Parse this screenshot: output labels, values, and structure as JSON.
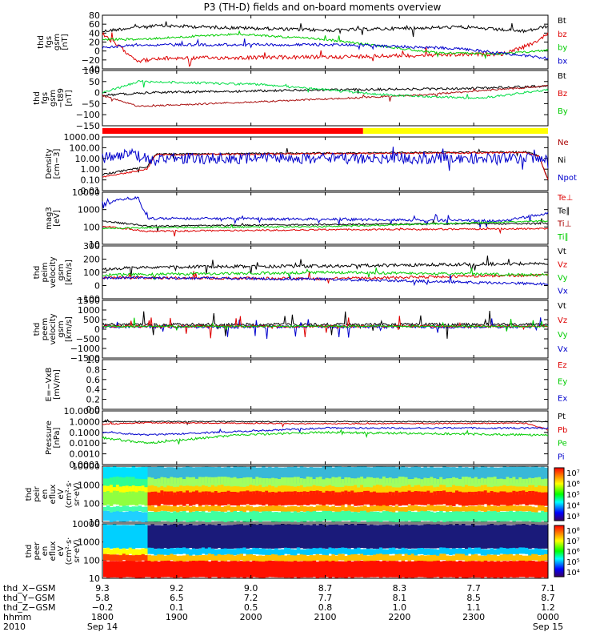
{
  "title": "P3 (TH-D) fields and on-board moments overview",
  "panels": [
    {
      "id": "fgs",
      "ylabel": [
        "thd",
        "fgs",
        "gsm",
        "[nT]"
      ],
      "ticks": [
        "80",
        "60",
        "40",
        "20",
        "0",
        "−20",
        "−40"
      ],
      "legend": [
        {
          "text": "Bt",
          "color": "#000000"
        },
        {
          "text": "bz",
          "color": "#dd0000"
        },
        {
          "text": "by",
          "color": "#00cc00"
        },
        {
          "text": "bx",
          "color": "#0000cc"
        }
      ]
    },
    {
      "id": "fgs_t89",
      "ylabel": [
        "thd",
        "fgs",
        "gsm",
        "−t89",
        "[nT]"
      ],
      "ticks": [
        "100",
        "50",
        "0",
        "−50",
        "−100",
        "−150"
      ],
      "legend": [
        {
          "text": "Bt",
          "color": "#000000"
        },
        {
          "text": "Bz",
          "color": "#dd0000"
        },
        {
          "text": "By",
          "color": "#00cc00"
        }
      ]
    },
    {
      "id": "density",
      "ylabel": [
        "Density",
        "[cm−3]"
      ],
      "ticks": [
        "1000.00",
        "100.00",
        "10.00",
        "1.00",
        "0.10",
        "0.01"
      ],
      "legend": [
        {
          "text": "Ne",
          "color": "#aa0000"
        },
        {
          "text": "Ni",
          "color": "#000000"
        },
        {
          "text": "Npot",
          "color": "#0000cc"
        }
      ]
    },
    {
      "id": "temp",
      "ylabel": [
        "mag3",
        "[eV]"
      ],
      "ticks": [
        "10000",
        "1000",
        "100",
        "10"
      ],
      "legend": [
        {
          "text": "Te⊥",
          "color": "#dd0000"
        },
        {
          "text": "Te∥",
          "color": "#000000"
        },
        {
          "text": "Ti⊥",
          "color": "#aa0000"
        },
        {
          "text": "Ti∥",
          "color": "#00cc00"
        }
      ]
    },
    {
      "id": "peim",
      "ylabel": [
        "thd",
        "peim",
        "velocity",
        "gsm",
        "[km/s]"
      ],
      "ticks": [
        "300",
        "200",
        "100",
        "0",
        "−100"
      ],
      "legend": [
        {
          "text": "Vt",
          "color": "#000000"
        },
        {
          "text": "Vz",
          "color": "#dd0000"
        },
        {
          "text": "Vy",
          "color": "#00cc00"
        },
        {
          "text": "Vx",
          "color": "#0000cc"
        }
      ]
    },
    {
      "id": "peem",
      "ylabel": [
        "thd",
        "peem",
        "velocity",
        "gsm",
        "[km/s]"
      ],
      "ticks": [
        "1500",
        "1000",
        "500",
        "0",
        "−500",
        "−1000",
        "−1500"
      ],
      "legend": [
        {
          "text": "Vt",
          "color": "#000000"
        },
        {
          "text": "Vz",
          "color": "#dd0000"
        },
        {
          "text": "Vy",
          "color": "#00cc00"
        },
        {
          "text": "Vx",
          "color": "#0000cc"
        }
      ]
    },
    {
      "id": "efield",
      "ylabel": [
        "E=−VxB",
        "[mV/m]"
      ],
      "ticks": [
        "1.0",
        "0.8",
        "0.6",
        "0.4",
        "0.2",
        "0.0"
      ],
      "legend": [
        {
          "text": "Ez",
          "color": "#dd0000"
        },
        {
          "text": "Ey",
          "color": "#00cc00"
        },
        {
          "text": "Ex",
          "color": "#0000cc"
        }
      ]
    },
    {
      "id": "pressure",
      "ylabel": [
        "Pressure",
        "[nPa]"
      ],
      "ticks": [
        "10.0000",
        "1.0000",
        "0.1000",
        "0.0100",
        "0.0010",
        "0.0001"
      ],
      "legend": [
        {
          "text": "Pt",
          "color": "#000000"
        },
        {
          "text": "Pb",
          "color": "#dd0000"
        },
        {
          "text": "Pe",
          "color": "#00cc00"
        },
        {
          "text": "Pi",
          "color": "#0000cc"
        }
      ]
    },
    {
      "id": "peir",
      "ylabel": [
        "thd",
        "peir",
        "en",
        "eflux",
        "eV",
        "(cm²·s·",
        "sr·eV)"
      ],
      "ticks": [
        "10000",
        "1000",
        "100",
        "10"
      ],
      "colorbar": [
        "10⁷",
        "10⁶",
        "10⁵",
        "10⁴",
        "10³"
      ]
    },
    {
      "id": "peer",
      "ylabel": [
        "thd",
        "peer",
        "en",
        "eflux",
        "eV",
        "(cm²·s·",
        "sr·eV)"
      ],
      "ticks": [
        "10000",
        "1000",
        "100",
        "10"
      ],
      "colorbar": [
        "10⁸",
        "10⁷",
        "10⁶",
        "10⁵",
        "10⁴"
      ]
    }
  ],
  "xaxis": {
    "row_labels": [
      "thd_X−GSM",
      "thd_Y−GSM",
      "thd_Z−GSM",
      "hhmm",
      "2010"
    ],
    "columns": [
      [
        "9.3",
        "5.8",
        "−0.2",
        "1800",
        "Sep 14"
      ],
      [
        "9.2",
        "6.5",
        "0.1",
        "1900",
        ""
      ],
      [
        "9.0",
        "7.2",
        "0.5",
        "2000",
        ""
      ],
      [
        "8.7",
        "7.7",
        "0.8",
        "2100",
        ""
      ],
      [
        "8.3",
        "8.1",
        "1.0",
        "2200",
        ""
      ],
      [
        "7.7",
        "8.5",
        "1.1",
        "2300",
        ""
      ],
      [
        "7.1",
        "8.7",
        "1.2",
        "0000",
        "Sep 15"
      ]
    ]
  },
  "mode_bar": {
    "colors": [
      "#ff0000",
      "#ffff00"
    ],
    "switch_time": "21:49"
  },
  "chart_data": {
    "type": "line",
    "title": "P3 (TH-D) fields and on-board moments overview",
    "x": [
      "1800",
      "1900",
      "2000",
      "2100",
      "2200",
      "2300",
      "0000"
    ],
    "xlim": [
      "2010-09-14 18:00",
      "2010-09-15 00:00"
    ],
    "series": [
      {
        "name": "Bt",
        "panel": "fgs",
        "values": [
          45,
          50,
          40,
          38,
          35,
          30,
          50
        ]
      },
      {
        "name": "bz",
        "panel": "fgs",
        "values": [
          35,
          -30,
          -22,
          -25,
          -25,
          -22,
          40
        ]
      },
      {
        "name": "by",
        "panel": "fgs",
        "values": [
          25,
          30,
          22,
          15,
          0,
          -25,
          -20
        ]
      },
      {
        "name": "bx",
        "panel": "fgs",
        "values": [
          -5,
          15,
          10,
          5,
          5,
          -5,
          -20
        ]
      },
      {
        "name": "Ne",
        "panel": "density",
        "values": [
          2,
          20,
          20,
          25,
          25,
          30,
          0.5
        ]
      },
      {
        "name": "Vt",
        "panel": "peim",
        "values": [
          50,
          100,
          100,
          110,
          110,
          100,
          150
        ]
      },
      {
        "name": "Pt",
        "panel": "pressure",
        "values": [
          1.5,
          1.2,
          1.0,
          1.0,
          0.9,
          0.9,
          1.0
        ]
      }
    ]
  }
}
